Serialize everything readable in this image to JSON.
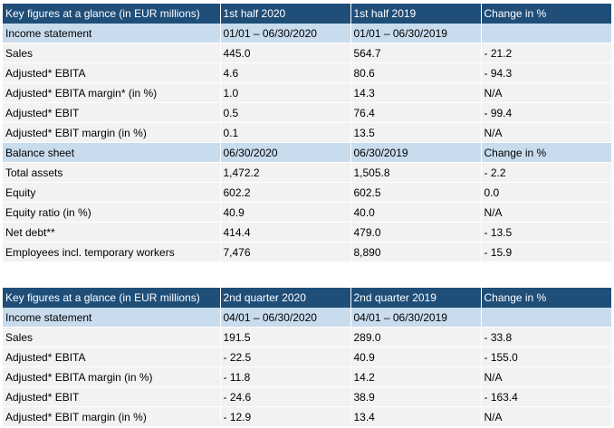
{
  "tables": [
    {
      "header": [
        "Key figures at a glance (in EUR millions)",
        "1st half 2020",
        "1st half 2019",
        "Change in %"
      ],
      "rows": [
        {
          "type": "sub",
          "cells": [
            "Income statement",
            "01/01 – 06/30/2020",
            "01/01 – 06/30/2019",
            ""
          ]
        },
        {
          "type": "row",
          "cells": [
            "Sales",
            "445.0",
            "564.7",
            "- 21.2"
          ]
        },
        {
          "type": "row",
          "cells": [
            "Adjusted* EBITA",
            "4.6",
            "80.6",
            "- 94.3"
          ]
        },
        {
          "type": "row",
          "cells": [
            "Adjusted* EBITA margin* (in %)",
            "1.0",
            "14.3",
            "N/A"
          ]
        },
        {
          "type": "row",
          "cells": [
            "Adjusted* EBIT",
            "0.5",
            "76.4",
            "- 99.4"
          ]
        },
        {
          "type": "row",
          "cells": [
            "Adjusted* EBIT margin (in %)",
            "0.1",
            "13.5",
            "N/A"
          ]
        },
        {
          "type": "sub",
          "cells": [
            "Balance sheet",
            "06/30/2020",
            "06/30/2019",
            "Change in %"
          ]
        },
        {
          "type": "row",
          "cells": [
            "Total assets",
            "1,472.2",
            "1,505.8",
            "- 2.2"
          ]
        },
        {
          "type": "row",
          "cells": [
            "Equity",
            "602.2",
            "602.5",
            "0.0"
          ]
        },
        {
          "type": "row",
          "cells": [
            "Equity ratio (in %)",
            "40.9",
            "40.0",
            "N/A"
          ]
        },
        {
          "type": "row",
          "cells": [
            "Net debt**",
            "414.4",
            "479.0",
            "- 13.5"
          ]
        },
        {
          "type": "row",
          "cells": [
            "Employees incl. temporary workers",
            "7,476",
            "8,890",
            "- 15.9"
          ]
        }
      ]
    },
    {
      "header": [
        "Key figures at a glance (in EUR millions)",
        "2nd quarter 2020",
        "2nd quarter 2019",
        "Change in %"
      ],
      "rows": [
        {
          "type": "sub",
          "cells": [
            "Income statement",
            "04/01 – 06/30/2020",
            "04/01 – 06/30/2019",
            ""
          ]
        },
        {
          "type": "row",
          "cells": [
            "Sales",
            "191.5",
            "289.0",
            "- 33.8"
          ]
        },
        {
          "type": "row",
          "cells": [
            "Adjusted* EBITA",
            "- 22.5",
            "40.9",
            "- 155.0"
          ]
        },
        {
          "type": "row",
          "cells": [
            "Adjusted* EBITA margin (in %)",
            "- 11.8",
            "14.2",
            "N/A"
          ]
        },
        {
          "type": "row",
          "cells": [
            "Adjusted* EBIT",
            "- 24.6",
            "38.9",
            "- 163.4"
          ]
        },
        {
          "type": "row",
          "cells": [
            "Adjusted* EBIT margin (in %)",
            "- 12.9",
            "13.4",
            "N/A"
          ]
        }
      ]
    }
  ]
}
